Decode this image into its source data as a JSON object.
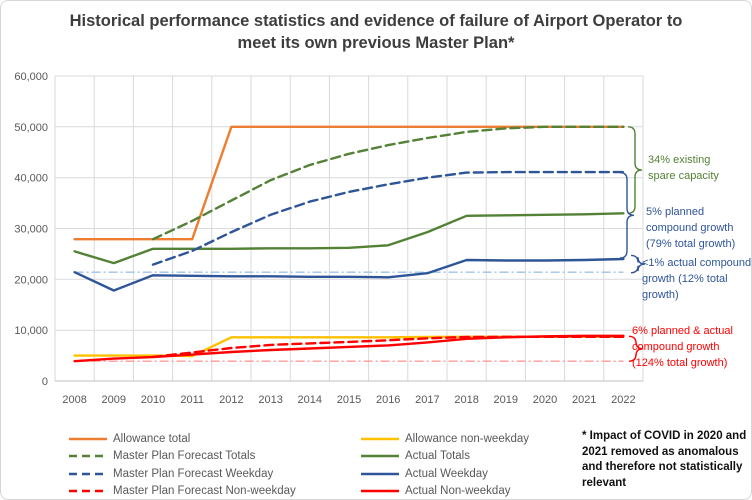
{
  "title": "Historical performance statistics and evidence of failure of Airport Operator to meet its own previous Master Plan*",
  "footnote": "* Impact of COVID in 2020 and 2021 removed as anomalous and therefore not statistically relevant",
  "chart_data": {
    "type": "line",
    "x": [
      2008,
      2009,
      2010,
      2011,
      2012,
      2013,
      2014,
      2015,
      2016,
      2017,
      2018,
      2019,
      2020,
      2021,
      2022
    ],
    "ylim": [
      0,
      60000
    ],
    "yticks": [
      {
        "value": 0,
        "label": "0"
      },
      {
        "value": 10000,
        "label": "10,000"
      },
      {
        "value": 20000,
        "label": "20,000"
      },
      {
        "value": 30000,
        "label": "30,000"
      },
      {
        "value": 40000,
        "label": "40,000"
      },
      {
        "value": 50000,
        "label": "50,000"
      },
      {
        "value": 60000,
        "label": "60,000"
      }
    ],
    "grid": true,
    "legend_position": "bottom",
    "series": [
      {
        "name": "Allowance total",
        "color": "#ED7D31",
        "style": "solid",
        "values": [
          27900,
          27900,
          27900,
          27900,
          50000,
          50000,
          50000,
          50000,
          50000,
          50000,
          50000,
          50000,
          50000,
          50000,
          50000
        ]
      },
      {
        "name": "Allowance non-weekday",
        "color": "#FFC000",
        "style": "solid",
        "values": [
          5000,
          5000,
          5000,
          4900,
          8600,
          8600,
          8600,
          8600,
          8600,
          8650,
          8700,
          8700,
          8700,
          8700,
          8700
        ]
      },
      {
        "name": "Actual Totals",
        "color": "#538135",
        "style": "solid",
        "values": [
          25500,
          23200,
          26000,
          26000,
          26000,
          26100,
          26100,
          26200,
          26700,
          29300,
          32500,
          32600,
          32700,
          32800,
          33000
        ]
      },
      {
        "name": "Actual Weekday",
        "color": "#2E5597",
        "style": "solid",
        "values": [
          21400,
          17800,
          20800,
          20700,
          20600,
          20600,
          20500,
          20500,
          20400,
          21200,
          23800,
          23700,
          23700,
          23800,
          24000
        ]
      },
      {
        "name": "Master Plan Forecast Totals",
        "color": "#538135",
        "style": "dashed",
        "values": [
          null,
          null,
          27900,
          31500,
          35500,
          39500,
          42500,
          44700,
          46400,
          47800,
          49000,
          49700,
          50000,
          50000,
          50000
        ]
      },
      {
        "name": "Master Plan Forecast Weekday",
        "color": "#2E5597",
        "style": "dashed",
        "values": [
          null,
          null,
          22900,
          25600,
          29300,
          32700,
          35300,
          37200,
          38700,
          40000,
          41000,
          41100,
          41100,
          41100,
          41100
        ]
      },
      {
        "name": "Master Plan Forecast Non-weekday",
        "color": "#FF0000",
        "style": "dashed",
        "values": [
          null,
          null,
          4750,
          5600,
          6500,
          7100,
          7400,
          7700,
          8000,
          8400,
          8650,
          8700,
          8700,
          8700,
          8700
        ]
      },
      {
        "name": "Actual Non-weekday",
        "color": "#FF0000",
        "style": "solid",
        "values": [
          3900,
          4400,
          4700,
          5200,
          5700,
          6100,
          6400,
          6700,
          7000,
          7600,
          8300,
          8600,
          8800,
          8900,
          8900
        ]
      }
    ],
    "reference_lines": [
      {
        "name": "2008 actual weekday level",
        "color": "#9DC3E6",
        "style": "dashdot",
        "value": 21400
      },
      {
        "name": "2008 actual non-weekday level",
        "color": "#FF9999",
        "style": "dashdot",
        "value": 3900
      }
    ],
    "annotations": [
      {
        "lines": [
          "34% existing",
          "spare capacity"
        ],
        "color": "#538135",
        "brace_from": 50000,
        "brace_to": 33000
      },
      {
        "lines": [
          "5% planned",
          "compound growth",
          "(79% total growth)"
        ],
        "color": "#2E5597",
        "brace_from": 41000,
        "brace_to": 24200
      },
      {
        "lines": [
          "<1% actual compound",
          "growth (12% total",
          "growth)"
        ],
        "color": "#2E5597",
        "brace_from": 24700,
        "brace_to": 21300
      },
      {
        "lines": [
          "6% planned & actual",
          "compound growth",
          "(124% total growth)"
        ],
        "color": "#FF0000",
        "brace_from": 8800,
        "brace_to": 3900
      }
    ]
  },
  "legend": {
    "left_column": [
      "Allowance total",
      "Master Plan Forecast Totals",
      "Master Plan Forecast Weekday",
      "Master Plan Forecast Non-weekday"
    ],
    "right_column": [
      "Allowance non-weekday",
      "Actual Totals",
      "Actual Weekday",
      "Actual Non-weekday"
    ]
  }
}
